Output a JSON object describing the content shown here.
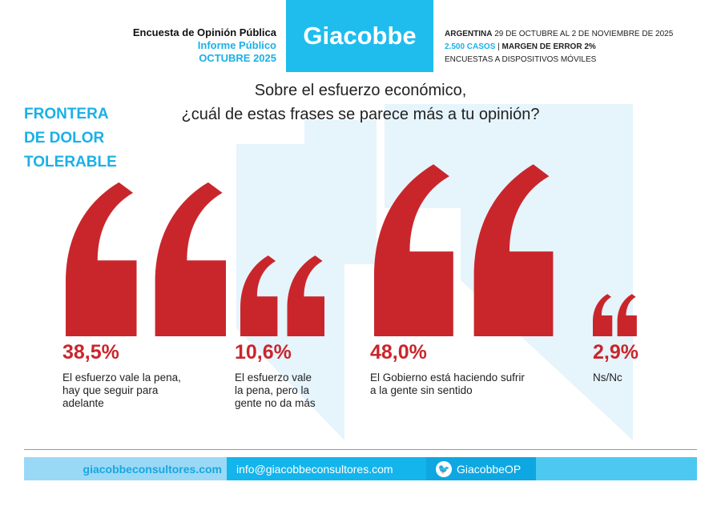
{
  "header": {
    "survey": "Encuesta de Opinión Pública",
    "report": "Informe Público",
    "period": "OCTUBRE 2025",
    "logo": "Giacobbe",
    "country": "ARGENTINA",
    "dates": "29 DE OCTUBRE AL 2 DE NOVIEMBRE DE 2025",
    "cases": "2.500 CASOS",
    "sep": "|",
    "margin": "MARGEN DE ERROR 2%",
    "method": "ENCUESTAS A DISPOSITIVOS MÓVILES"
  },
  "side_title": [
    "FRONTERA",
    "DE DOLOR",
    "TOLERABLE"
  ],
  "chart_data": {
    "type": "bar",
    "title_lines": [
      "Sobre el esfuerzo económico,",
      "¿cuál de estas frases se parece más a tu opinión?"
    ],
    "categories": [
      "El esfuerzo vale la pena, hay que seguir para adelante",
      "El esfuerzo vale la pena, pero la gente no da más",
      "El Gobierno está haciendo sufrir a la gente sin sentido",
      "Ns/Nc"
    ],
    "values": [
      38.5,
      10.6,
      48.0,
      2.9
    ],
    "value_labels": [
      "38,5%",
      "10,6%",
      "48,0%",
      "2,9%"
    ],
    "label_lines": [
      [
        "El esfuerzo vale la pena,",
        "hay que seguir para",
        "adelante"
      ],
      [
        "El esfuerzo vale",
        "la pena, pero la",
        "gente no da más"
      ],
      [
        "El Gobierno está haciendo sufrir",
        "a la gente sin sentido"
      ],
      [
        "Ns/Nc"
      ]
    ],
    "mark": "quotation-mark",
    "color": "#c9262c"
  },
  "footer": {
    "web": "giacobbeconsultores.com",
    "email": "info@giacobbeconsultores.com",
    "twitter": "GiacobbeOP",
    "twitter_icon": "twitter-bird-icon"
  }
}
